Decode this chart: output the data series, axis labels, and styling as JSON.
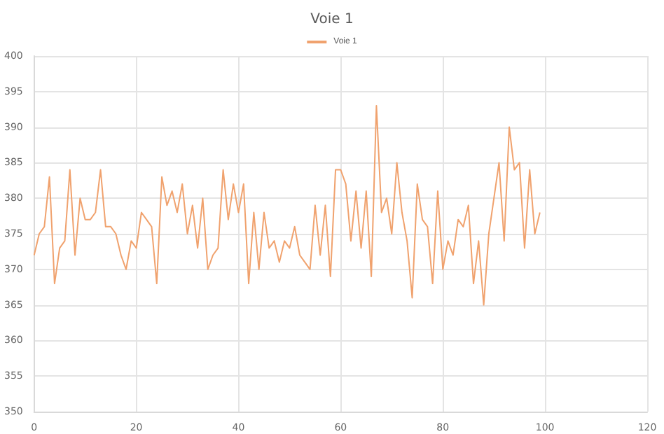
{
  "chart_data": {
    "type": "line",
    "title": "Voie 1",
    "x": [
      0,
      1,
      2,
      3,
      4,
      5,
      6,
      7,
      8,
      9,
      10,
      11,
      12,
      13,
      14,
      15,
      16,
      17,
      18,
      19,
      20,
      21,
      22,
      23,
      24,
      25,
      26,
      27,
      28,
      29,
      30,
      31,
      32,
      33,
      34,
      35,
      36,
      37,
      38,
      39,
      40,
      41,
      42,
      43,
      44,
      45,
      46,
      47,
      48,
      49,
      50,
      51,
      52,
      53,
      54,
      55,
      56,
      57,
      58,
      59,
      60,
      61,
      62,
      63,
      64,
      65,
      66,
      67,
      68,
      69,
      70,
      71,
      72,
      73,
      74,
      75,
      76,
      77,
      78,
      79,
      80,
      81,
      82,
      83,
      84,
      85,
      86,
      87,
      88,
      89,
      90,
      91,
      92,
      93,
      94,
      95,
      96,
      97,
      98,
      99
    ],
    "series": [
      {
        "name": "Voie 1",
        "color": "#f0a26e",
        "values": [
          372,
          375,
          376,
          383,
          368,
          373,
          374,
          384,
          372,
          380,
          377,
          377,
          378,
          384,
          376,
          376,
          375,
          372,
          370,
          374,
          373,
          378,
          377,
          376,
          368,
          383,
          379,
          381,
          378,
          382,
          375,
          379,
          373,
          380,
          370,
          372,
          373,
          384,
          377,
          382,
          378,
          382,
          368,
          378,
          370,
          378,
          373,
          374,
          371,
          374,
          373,
          376,
          372,
          371,
          370,
          379,
          372,
          379,
          369,
          384,
          384,
          382,
          374,
          381,
          373,
          381,
          369,
          393,
          378,
          380,
          375,
          385,
          378,
          374,
          366,
          382,
          377,
          376,
          368,
          381,
          370,
          374,
          372,
          377,
          376,
          379,
          368,
          374,
          365,
          375,
          380,
          385,
          374,
          390,
          384,
          385,
          373,
          384,
          375,
          378
        ]
      }
    ],
    "xlim": [
      0,
      120
    ],
    "xticks": [
      0,
      20,
      40,
      60,
      80,
      100,
      120
    ],
    "ylim": [
      350,
      400
    ],
    "yticks": [
      350,
      355,
      360,
      365,
      370,
      375,
      380,
      385,
      390,
      395,
      400
    ],
    "grid": true,
    "legend": "top",
    "marker": "none",
    "line_style": "solid"
  }
}
